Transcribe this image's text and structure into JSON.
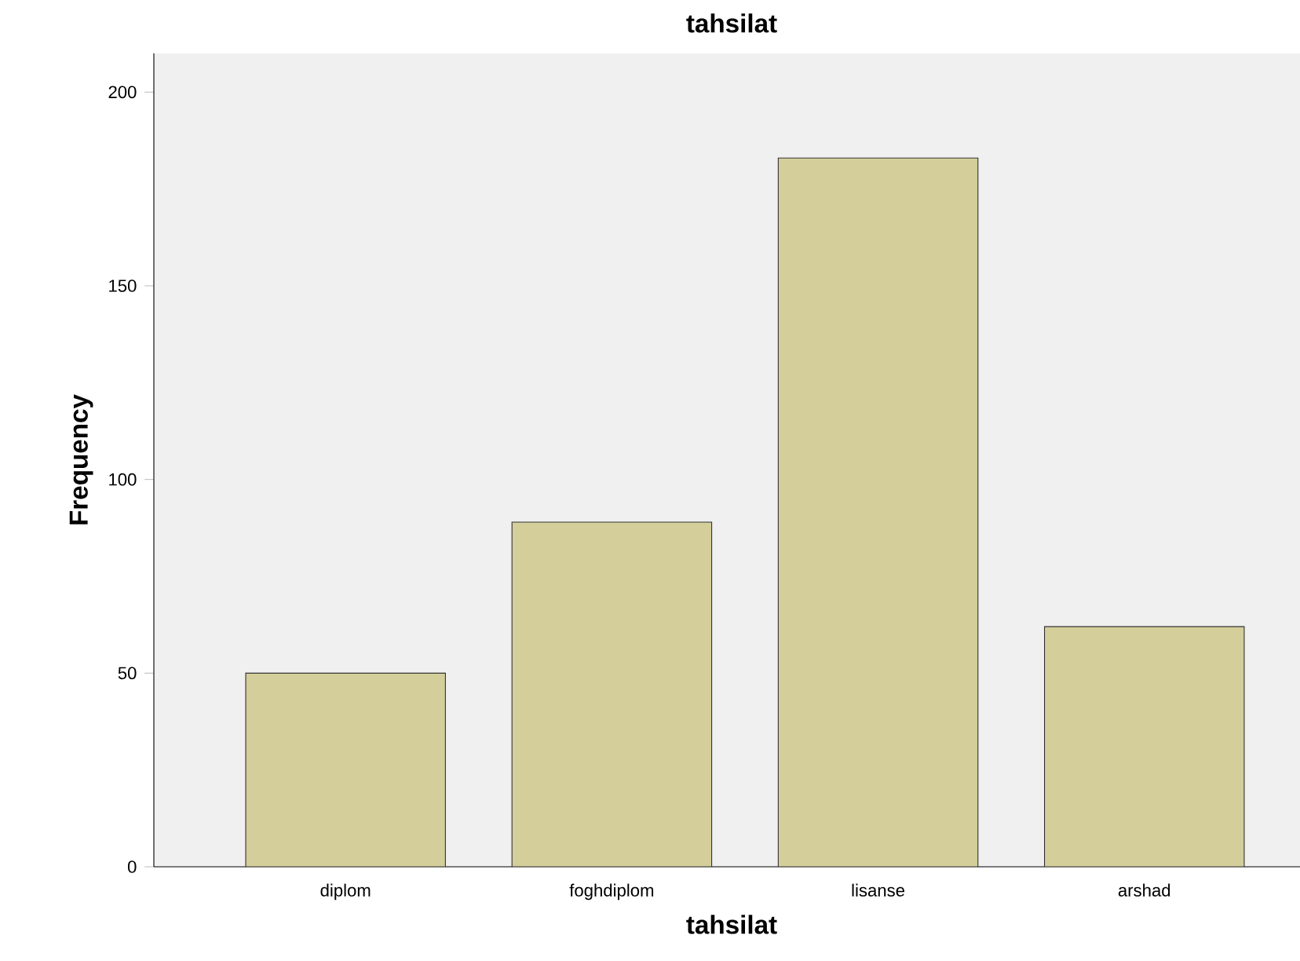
{
  "chart_data": {
    "type": "bar",
    "title": "tahsilat",
    "xlabel": "tahsilat",
    "ylabel": "Frequency",
    "categories": [
      "diplom",
      "foghdiplom",
      "lisanse",
      "arshad"
    ],
    "values": [
      50,
      89,
      183,
      62
    ],
    "color": "#d3ce9a",
    "ylim": [
      0,
      210
    ],
    "yticks": [
      0,
      50,
      100,
      150,
      200
    ]
  }
}
